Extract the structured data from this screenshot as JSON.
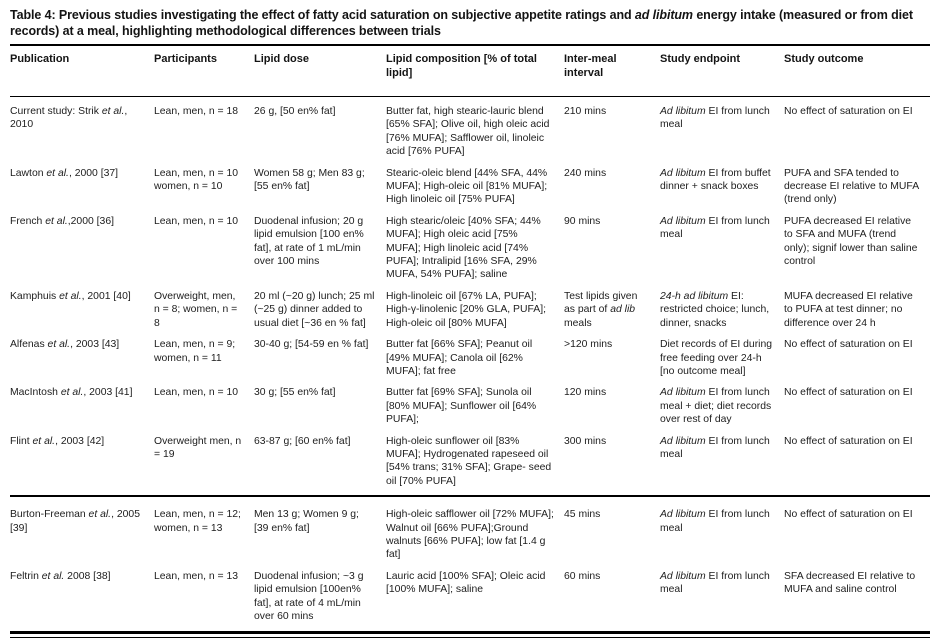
{
  "title": "Table 4: Previous studies investigating the effect of fatty acid saturation on subjective appetite ratings and *ad libitum* energy intake (measured or from diet records) at a meal, highlighting methodological differences between trials",
  "colors": {
    "text": "#1a1a1a",
    "rule": "#000000",
    "background": "#ffffff"
  },
  "table": {
    "columns": [
      "Publication",
      "Participants",
      "Lipid dose",
      "Lipid composition [% of total lipid]",
      "Inter-meal interval",
      "Study endpoint",
      "Study outcome"
    ],
    "rows": [
      {
        "publication": "Current study: Strik *et al.*, 2010",
        "participants": "Lean, men, n = 18",
        "lipid_dose": "26 g, [50 en% fat]",
        "lipid_composition": "Butter fat, high stearic-lauric blend [65% SFA]; Olive oil, high oleic acid [76% MUFA]; Safflower oil, linoleic acid [76% PUFA]",
        "inter_meal_interval": "210 mins",
        "study_endpoint": "*Ad libitum* EI from lunch meal",
        "study_outcome": "No effect of saturation on EI",
        "rule_before": false
      },
      {
        "publication": "Lawton *et al.*, 2000 [37]",
        "participants": "Lean, men, n = 10 women, n = 10",
        "lipid_dose": "Women 58 g; Men 83 g; [55 en% fat]",
        "lipid_composition": "Stearic-oleic blend [44% SFA, 44% MUFA]; High-oleic oil [81% MUFA]; High linoleic oil [75% PUFA]",
        "inter_meal_interval": "240 mins",
        "study_endpoint": "*Ad libitum* EI from buffet dinner + snack boxes",
        "study_outcome": "PUFA and SFA tended to decrease EI relative to MUFA (trend only)",
        "rule_before": false
      },
      {
        "publication": "French *et al.*,2000 [36]",
        "participants": "Lean, men, n = 10",
        "lipid_dose": "Duodenal infusion; 20 g lipid emulsion [100 en% fat], at rate of 1 mL/min over 100 mins",
        "lipid_composition": "High stearic/oleic [40% SFA; 44% MUFA]; High oleic acid [75% MUFA]; High linoleic acid [74% PUFA]; Intralipid [16% SFA, 29% MUFA, 54% PUFA]; saline",
        "inter_meal_interval": "90 mins",
        "study_endpoint": "*Ad libitum* EI from lunch meal",
        "study_outcome": "PUFA decreased EI relative to SFA and MUFA (trend only); signif lower than saline control",
        "rule_before": false
      },
      {
        "publication": "Kamphuis *et al.*, 2001 [40]",
        "participants": "Overweight, men, n = 8; women, n = 8",
        "lipid_dose": "20 ml (~20 g) lunch; 25 ml (~25 g) dinner added to usual diet [~36 en % fat]",
        "lipid_composition": "High-linoleic oil [67% LA, PUFA]; High-γ-linolenic [20% GLA, PUFA]; High-oleic oil [80% MUFA]",
        "inter_meal_interval": "Test lipids given as part of *ad lib* meals",
        "study_endpoint": "*24-h ad libitum* EI: restricted choice; lunch, dinner, snacks",
        "study_outcome": "MUFA decreased EI relative to PUFA at test dinner; no difference over 24 h",
        "rule_before": false
      },
      {
        "publication": "Alfenas *et al.*, 2003 [43]",
        "participants": "Lean, men, n = 9; women, n = 11",
        "lipid_dose": "30-40 g; [54-59 en % fat]",
        "lipid_composition": "Butter fat [66% SFA]; Peanut oil [49% MUFA]; Canola oil [62% MUFA]; fat free",
        "inter_meal_interval": ">120 mins",
        "study_endpoint": "Diet records of EI during free feeding over 24-h [no outcome meal]",
        "study_outcome": "No effect of saturation on EI",
        "rule_before": false
      },
      {
        "publication": "MacIntosh *et al.*, 2003 [41]",
        "participants": "Lean, men, n = 10",
        "lipid_dose": "30 g; [55 en% fat]",
        "lipid_composition": "Butter fat [69% SFA]; Sunola oil [80% MUFA]; Sunflower oil [64% PUFA];",
        "inter_meal_interval": "120 mins",
        "study_endpoint": "*Ad libitum* EI from lunch meal + diet; diet records over rest of day",
        "study_outcome": "No effect of saturation on EI",
        "rule_before": false
      },
      {
        "publication": "Flint *et al.*, 2003 [42]",
        "participants": "Overweight men, n = 19",
        "lipid_dose": "63-87 g; [60 en% fat]",
        "lipid_composition": "High-oleic sunflower oil [83% MUFA]; Hydrogenated rapeseed oil [54% trans; 31% SFA]; Grape- seed oil [70% PUFA]",
        "inter_meal_interval": "300 mins",
        "study_endpoint": "*Ad libitum* EI from lunch meal",
        "study_outcome": "No effect of saturation on EI",
        "rule_before": false
      },
      {
        "publication": "Burton-Freeman *et al.*, 2005 [39]",
        "participants": "Lean, men, n = 12; women, n = 13",
        "lipid_dose": "Men 13 g; Women 9 g; [39 en% fat]",
        "lipid_composition": "High-oleic safflower oil [72% MUFA]; Walnut oil [66% PUFA];Ground walnuts [66% PUFA]; low fat [1.4 g fat]",
        "inter_meal_interval": "45 mins",
        "study_endpoint": "*Ad libitum* EI from lunch meal",
        "study_outcome": "No effect of saturation on EI",
        "rule_before": true
      },
      {
        "publication": "Feltrin *et al.* 2008 [38]",
        "participants": "Lean, men, n = 13",
        "lipid_dose": "Duodenal infusion; ~3 g lipid emulsion [100en% fat], at rate of 4 mL/min over 60 mins",
        "lipid_composition": "Lauric acid [100% SFA]; Oleic acid [100% MUFA]; saline",
        "inter_meal_interval": "60 mins",
        "study_endpoint": "*Ad libitum* EI from lunch meal",
        "study_outcome": "SFA decreased EI relative to MUFA and saline control",
        "rule_before": false
      }
    ]
  }
}
